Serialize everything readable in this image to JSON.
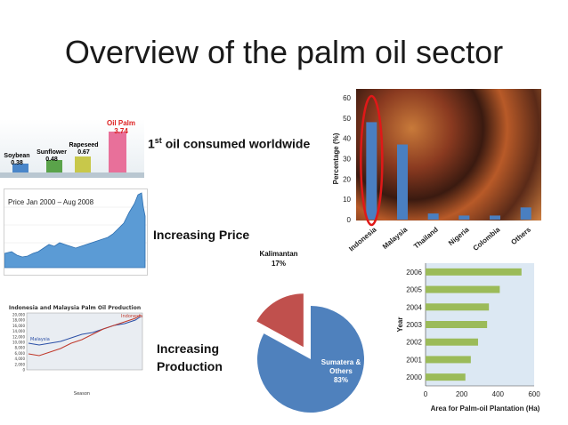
{
  "slide": {
    "title": "Overview of the palm oil sector"
  },
  "oils_panel": {
    "items": [
      {
        "name": "Soybean",
        "value": "0.38",
        "color": "#4a86c9"
      },
      {
        "name": "Sunflower",
        "value": "0.48",
        "color": "#5aa34a"
      },
      {
        "name": "Rapeseed",
        "value": "0.67",
        "color": "#c8c84a"
      },
      {
        "name": "Oil Palm",
        "value": "3.74",
        "color": "#e8709a"
      }
    ],
    "caption_sup": "st",
    "caption_pre": "1",
    "caption_rest": " oil consumed worldwide"
  },
  "price_panel": {
    "label": "Price Jan 2000 – Aug 2008",
    "caption": "Increasing Price"
  },
  "production_panel": {
    "title": "Indonesia and Malaysia Palm Oil Production",
    "series_labels": {
      "indonesia": "Indonesia",
      "malaysia": "Malaysia"
    },
    "y_ticks": [
      "20,000",
      "18,000",
      "16,000",
      "14,000",
      "12,000",
      "10,000",
      "8,000",
      "6,000",
      "4,000",
      "2,000",
      "0"
    ],
    "x_label": "Season",
    "caption_line1": "Increasing",
    "caption_line2": "Production"
  },
  "chart_data": [
    {
      "type": "bar",
      "categories": [
        "Indonesia",
        "Malaysia",
        "Thailand",
        "Nigeria",
        "Colombia",
        "Others"
      ],
      "values": [
        48,
        37,
        3,
        2,
        2,
        6
      ],
      "xlabel": "",
      "ylabel": "Percentage (%)",
      "ylim": [
        0,
        60
      ],
      "yticks": [
        0,
        10,
        20,
        30,
        40,
        50,
        60
      ],
      "color": "#4a7fc1",
      "highlight": "Indonesia"
    },
    {
      "type": "pie",
      "slices": [
        {
          "label": "Sumatera & Others",
          "value": 83,
          "display": "83%",
          "color": "#4f81bd"
        },
        {
          "label": "Kalimantan",
          "value": 17,
          "display": "17%",
          "color": "#c0504d"
        }
      ]
    },
    {
      "type": "bar",
      "orientation": "horizontal",
      "categories": [
        "2000",
        "2001",
        "2002",
        "2003",
        "2004",
        "2005",
        "2006"
      ],
      "values": [
        220,
        250,
        290,
        340,
        350,
        410,
        530
      ],
      "xlabel": "Area for Palm-oil Plantation (Ha)",
      "ylabel": "Year",
      "xlim": [
        0,
        600
      ],
      "xticks": [
        0,
        200,
        400,
        600
      ],
      "color": "#9bbb59"
    }
  ]
}
